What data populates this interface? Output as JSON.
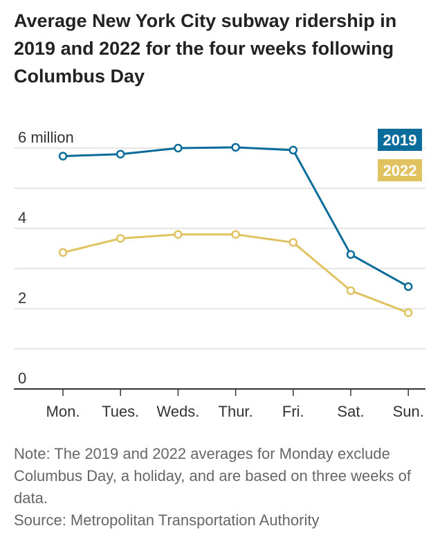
{
  "chart_data": {
    "type": "line",
    "title": "Average New York City subway ridership in 2019 and 2022 for the four weeks following Columbus Day",
    "categories": [
      "Mon.",
      "Tues.",
      "Weds.",
      "Thur.",
      "Fri.",
      "Sat.",
      "Sun."
    ],
    "y_ticks": [
      {
        "value": 0,
        "label": "0"
      },
      {
        "value": 2,
        "label": "2"
      },
      {
        "value": 4,
        "label": "4"
      },
      {
        "value": 6,
        "label": "6 million"
      }
    ],
    "gridlines": [
      1,
      2,
      3,
      4,
      5,
      6
    ],
    "ylim": [
      0,
      6.5
    ],
    "grid": true,
    "legend_placement": "top-right",
    "series": [
      {
        "name": "2019",
        "color": "#0a6c9a",
        "values": [
          5.8,
          5.85,
          6.0,
          6.02,
          5.95,
          3.35,
          2.55
        ]
      },
      {
        "name": "2022",
        "color": "#e0c260",
        "values": [
          3.4,
          3.75,
          3.85,
          3.85,
          3.65,
          2.45,
          1.9
        ]
      }
    ]
  },
  "notes": {
    "note": "Note: The 2019 and 2022 averages for Monday exclude Columbus Day, a holiday, and are based on three weeks of data.",
    "source": "Source: Metropolitan Transportation Authority"
  }
}
